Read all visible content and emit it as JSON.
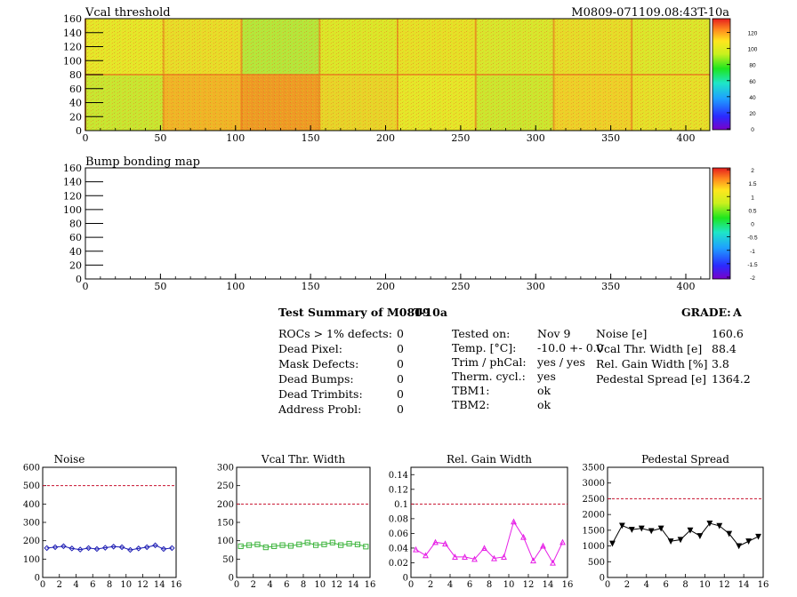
{
  "vcal_map": {
    "title": "Vcal threshold",
    "module_label": "M0809-071109.08:43T-10a",
    "x_ticks": [
      "0",
      "50",
      "100",
      "150",
      "200",
      "250",
      "300",
      "350",
      "400"
    ],
    "y_ticks": [
      "0",
      "20",
      "40",
      "60",
      "80",
      "100",
      "120",
      "140",
      "160"
    ],
    "palette_ticks": [
      "0",
      "20",
      "40",
      "60",
      "80",
      "100",
      "120"
    ]
  },
  "bump_map": {
    "title": "Bump bonding map",
    "x_ticks": [
      "0",
      "50",
      "100",
      "150",
      "200",
      "250",
      "300",
      "350",
      "400"
    ],
    "y_ticks": [
      "0",
      "20",
      "40",
      "60",
      "80",
      "100",
      "120",
      "140",
      "160"
    ],
    "palette_ticks": [
      "-2",
      "-1.5",
      "-1",
      "-0.5",
      "0",
      "0.5",
      "1",
      "1.5",
      "2"
    ]
  },
  "summary": {
    "heading": "Test Summary of M0809",
    "temp_tag": "T-10a",
    "grade_label": "GRADE:",
    "grade": "A",
    "defects": [
      {
        "label": "ROCs > 1% defects:",
        "value": "0"
      },
      {
        "label": "Dead Pixel:",
        "value": "0"
      },
      {
        "label": "Mask Defects:",
        "value": "0"
      },
      {
        "label": "Dead Bumps:",
        "value": "0"
      },
      {
        "label": "Dead Trimbits:",
        "value": "0"
      },
      {
        "label": "Address Probl:",
        "value": "0"
      }
    ],
    "conditions": [
      {
        "label": "Tested on:",
        "value": "Nov 9"
      },
      {
        "label": "Temp. [°C]:",
        "value": "-10.0 +- 0.0"
      },
      {
        "label": "Trim / phCal:",
        "value": "yes / yes"
      },
      {
        "label": "Therm. cycl.:",
        "value": "yes"
      },
      {
        "label": "TBM1:",
        "value": "ok"
      },
      {
        "label": "TBM2:",
        "value": "ok"
      }
    ],
    "results": [
      {
        "label": "Noise [e]",
        "value": "160.6"
      },
      {
        "label": "Vcal Thr. Width [e]",
        "value": "88.4"
      },
      {
        "label": "Rel. Gain Width [%]",
        "value": "3.8"
      },
      {
        "label": "Pedestal Spread [e]",
        "value": "1364.2"
      }
    ]
  },
  "chart_data": [
    {
      "type": "line",
      "title": "Noise",
      "x": [
        0,
        1,
        2,
        3,
        4,
        5,
        6,
        7,
        8,
        9,
        10,
        11,
        12,
        13,
        14,
        15
      ],
      "values": [
        160,
        165,
        170,
        158,
        152,
        160,
        155,
        162,
        168,
        165,
        150,
        158,
        165,
        175,
        155,
        160
      ],
      "xlim": [
        0,
        16
      ],
      "ylim": [
        0,
        600
      ],
      "x_ticks": [
        0,
        2,
        4,
        6,
        8,
        10,
        12,
        14,
        16
      ],
      "y_ticks": [
        0,
        100,
        200,
        300,
        400,
        500,
        600
      ],
      "threshold": 500,
      "color": "#1f1fb4",
      "threshold_color": "#c8102e",
      "marker": "diamond"
    },
    {
      "type": "line",
      "title": "Vcal Thr. Width",
      "x": [
        0,
        1,
        2,
        3,
        4,
        5,
        6,
        7,
        8,
        9,
        10,
        11,
        12,
        13,
        14,
        15
      ],
      "values": [
        85,
        88,
        90,
        82,
        85,
        88,
        86,
        90,
        95,
        88,
        90,
        95,
        88,
        92,
        90,
        84
      ],
      "xlim": [
        0,
        16
      ],
      "ylim": [
        0,
        300
      ],
      "x_ticks": [
        0,
        2,
        4,
        6,
        8,
        10,
        12,
        14,
        16
      ],
      "y_ticks": [
        0,
        50,
        100,
        150,
        200,
        250,
        300
      ],
      "threshold": 200,
      "color": "#3cb43c",
      "threshold_color": "#c8102e",
      "marker": "square"
    },
    {
      "type": "line",
      "title": "Rel. Gain Width",
      "x": [
        0,
        1,
        2,
        3,
        4,
        5,
        6,
        7,
        8,
        9,
        10,
        11,
        12,
        13,
        14,
        15
      ],
      "values": [
        0.038,
        0.03,
        0.048,
        0.046,
        0.028,
        0.028,
        0.025,
        0.04,
        0.026,
        0.028,
        0.076,
        0.055,
        0.023,
        0.043,
        0.02,
        0.048
      ],
      "xlim": [
        0,
        16
      ],
      "ylim": [
        0,
        0.15
      ],
      "x_ticks": [
        0,
        2,
        4,
        6,
        8,
        10,
        12,
        14,
        16
      ],
      "y_ticks": [
        0,
        0.02,
        0.04,
        0.06,
        0.08,
        0.1,
        0.12,
        0.14
      ],
      "threshold": 0.1,
      "color": "#e61ee6",
      "threshold_color": "#c8102e",
      "marker": "triangle"
    },
    {
      "type": "line",
      "title": "Pedestal Spread",
      "x": [
        0,
        1,
        2,
        3,
        4,
        5,
        6,
        7,
        8,
        9,
        10,
        11,
        12,
        13,
        14,
        15
      ],
      "values": [
        1080,
        1650,
        1520,
        1560,
        1480,
        1560,
        1150,
        1200,
        1500,
        1320,
        1720,
        1640,
        1390,
        1000,
        1150,
        1300
      ],
      "xlim": [
        0,
        16
      ],
      "ylim": [
        0,
        3500
      ],
      "x_ticks": [
        0,
        2,
        4,
        6,
        8,
        10,
        12,
        14,
        16
      ],
      "y_ticks": [
        0,
        500,
        1000,
        1500,
        2000,
        2500,
        3000,
        3500
      ],
      "threshold": 2500,
      "color": "#000000",
      "threshold_color": "#c8102e",
      "marker": "triangle-down"
    }
  ],
  "colors": {
    "frame": "#000000",
    "threshold": "#c8102e"
  }
}
